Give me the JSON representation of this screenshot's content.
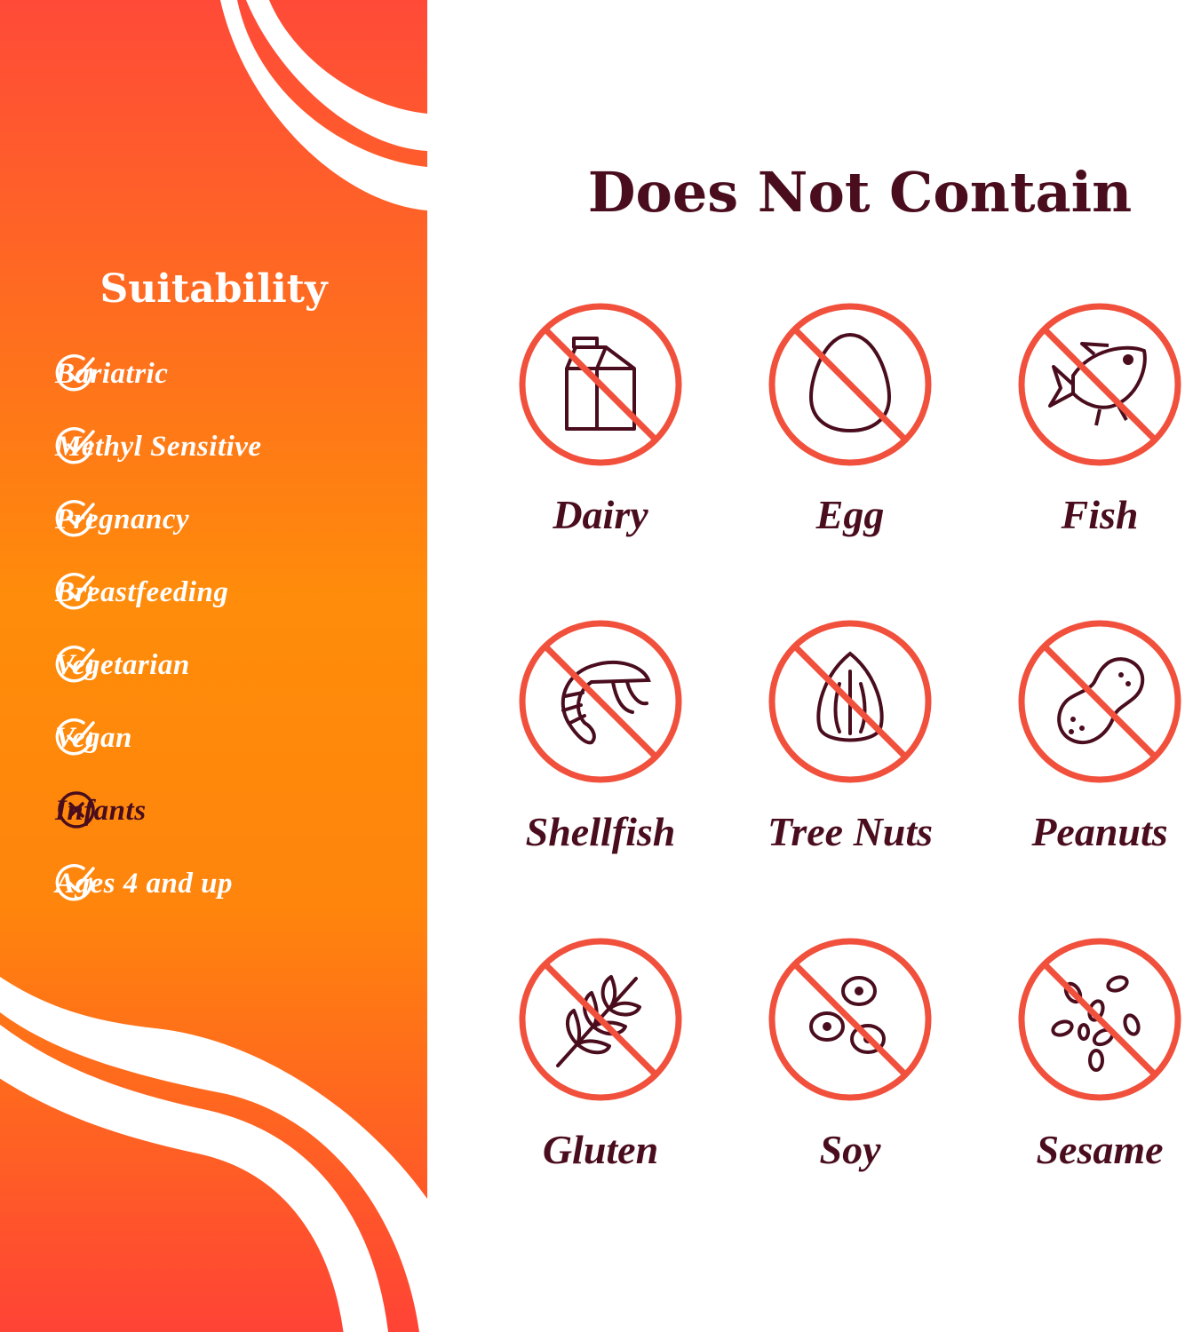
{
  "colors": {
    "panel_top": "#ff4a38",
    "panel_mid": "#ff8c0a",
    "accent_red": "#f0503c",
    "maroon": "#4a0d1e",
    "white": "#ffffff"
  },
  "suitability": {
    "title": "Suitability",
    "items": [
      {
        "label": "Bariatric",
        "status": "check-icon"
      },
      {
        "label": "Methyl Sensitive",
        "status": "check-icon"
      },
      {
        "label": "Pregnancy",
        "status": "check-icon"
      },
      {
        "label": "Breastfeeding",
        "status": "check-icon"
      },
      {
        "label": "Vegetarian",
        "status": "check-icon"
      },
      {
        "label": "Vegan",
        "status": "check-icon"
      },
      {
        "label": "Infants",
        "status": "x-icon"
      },
      {
        "label": "Ages 4 and up",
        "status": "check-icon"
      }
    ]
  },
  "does_not_contain": {
    "title": "Does Not Contain",
    "items": [
      {
        "label": "Dairy",
        "icon": "milk-carton-icon"
      },
      {
        "label": "Egg",
        "icon": "egg-icon"
      },
      {
        "label": "Fish",
        "icon": "fish-icon"
      },
      {
        "label": "Shellfish",
        "icon": "shrimp-icon"
      },
      {
        "label": "Tree Nuts",
        "icon": "almond-icon"
      },
      {
        "label": "Peanuts",
        "icon": "peanut-icon"
      },
      {
        "label": "Gluten",
        "icon": "wheat-icon"
      },
      {
        "label": "Soy",
        "icon": "soybean-icon"
      },
      {
        "label": "Sesame",
        "icon": "sesame-icon"
      }
    ]
  }
}
